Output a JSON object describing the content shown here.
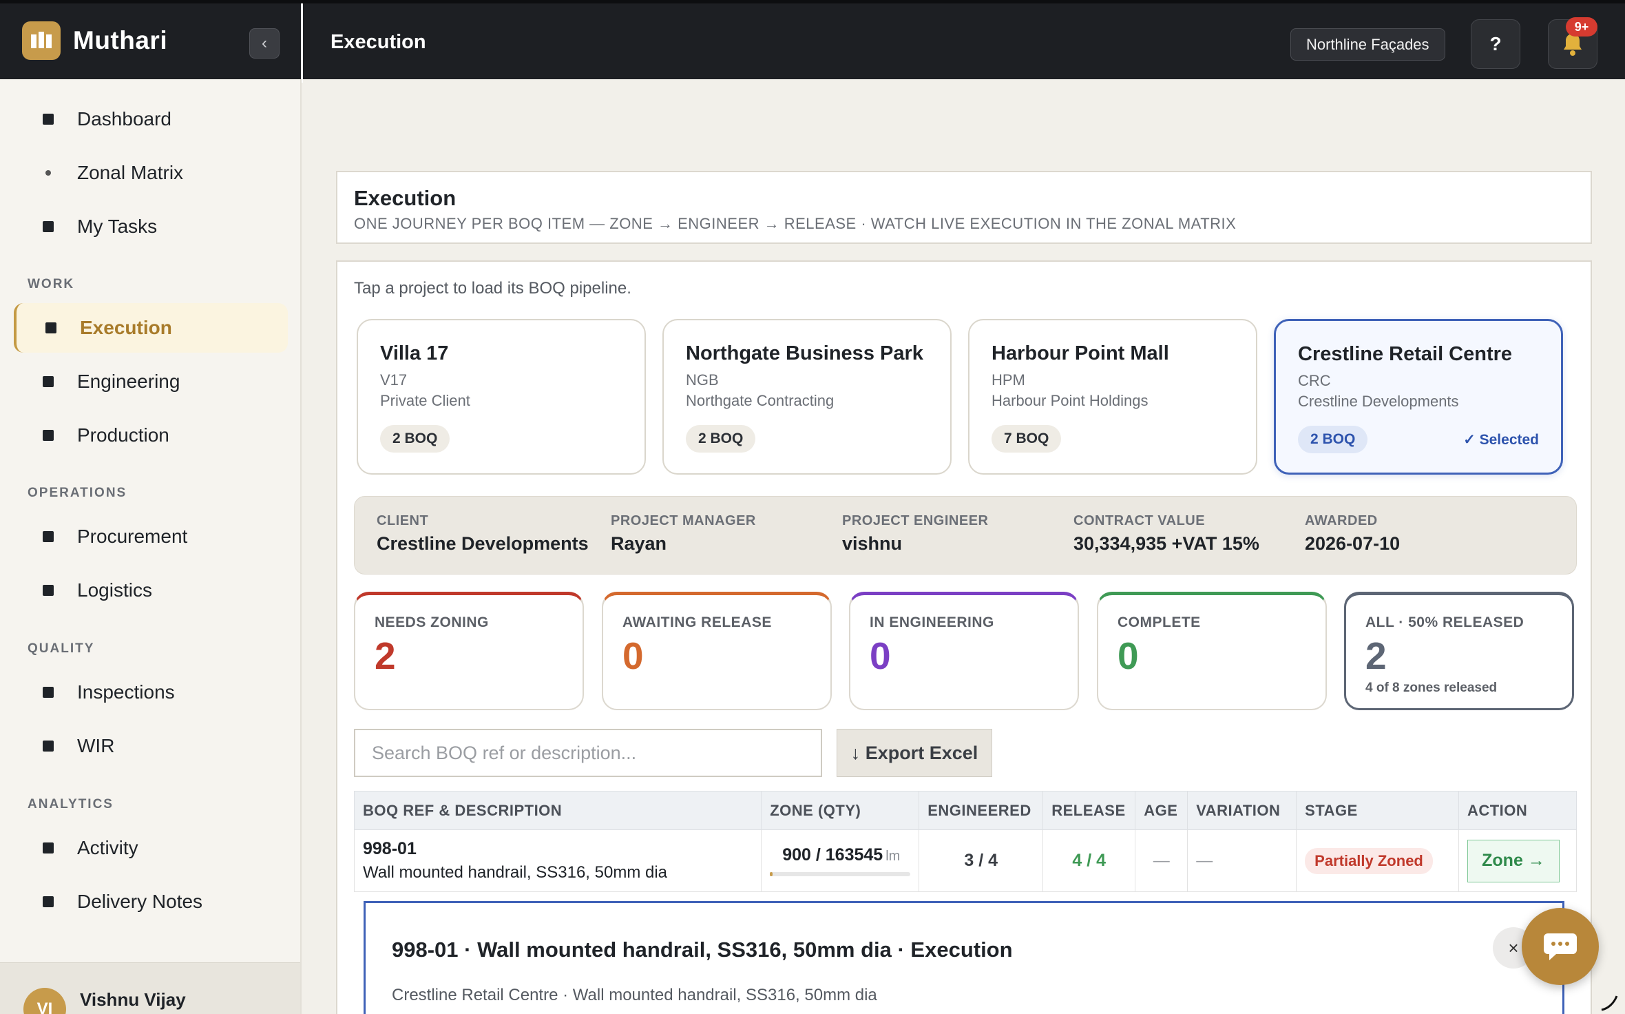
{
  "app": {
    "brand": "Muthari",
    "page_title": "Execution",
    "org": "Northline Façades",
    "help_label": "?",
    "notif_count": "9+"
  },
  "sidebar": {
    "items_top": [
      {
        "label": "Dashboard"
      },
      {
        "label": "Zonal Matrix"
      },
      {
        "label": "My Tasks"
      }
    ],
    "sections": [
      {
        "title": "WORK",
        "items": [
          {
            "label": "Execution"
          },
          {
            "label": "Engineering"
          },
          {
            "label": "Production"
          }
        ]
      },
      {
        "title": "OPERATIONS",
        "items": [
          {
            "label": "Procurement"
          },
          {
            "label": "Logistics"
          }
        ]
      },
      {
        "title": "QUALITY",
        "items": [
          {
            "label": "Inspections"
          },
          {
            "label": "WIR"
          }
        ]
      },
      {
        "title": "ANALYTICS",
        "items": [
          {
            "label": "Activity"
          },
          {
            "label": "Delivery Notes"
          }
        ]
      }
    ],
    "user": {
      "initials": "VI",
      "name": "Vishnu Vijay"
    }
  },
  "header": {
    "title": "Execution",
    "subtitle": "ONE JOURNEY PER BOQ ITEM — ZONE → ENGINEER → RELEASE · WATCH LIVE EXECUTION IN THE ZONAL MATRIX"
  },
  "projects": {
    "hint": "Tap a project to load its BOQ pipeline.",
    "selected_label": "✓ Selected",
    "items": [
      {
        "name": "Villa 17",
        "code": "V17",
        "client": "Private Client",
        "boq": "2 BOQ"
      },
      {
        "name": "Northgate Business Park",
        "code": "NGB",
        "client": "Northgate Contracting",
        "boq": "2 BOQ"
      },
      {
        "name": "Harbour Point Mall",
        "code": "HPM",
        "client": "Harbour Point Holdings",
        "boq": "7 BOQ"
      },
      {
        "name": "Crestline Retail Centre",
        "code": "CRC",
        "client": "Crestline Developments",
        "boq": "2 BOQ"
      }
    ]
  },
  "project_info": [
    {
      "label": "CLIENT",
      "value": "Crestline Developments"
    },
    {
      "label": "PROJECT MANAGER",
      "value": "Rayan"
    },
    {
      "label": "PROJECT ENGINEER",
      "value": "vishnu"
    },
    {
      "label": "CONTRACT VALUE",
      "value": "30,334,935 +VAT 15%"
    },
    {
      "label": "AWARDED",
      "value": "2026-07-10"
    }
  ],
  "kpis": [
    {
      "label": "NEEDS ZONING",
      "value": "2",
      "color": "#c0392b"
    },
    {
      "label": "AWAITING RELEASE",
      "value": "0",
      "color": "#d4692e"
    },
    {
      "label": "IN ENGINEERING",
      "value": "0",
      "color": "#7b3fc4"
    },
    {
      "label": "COMPLETE",
      "value": "0",
      "color": "#3f9a55"
    },
    {
      "label": "ALL · 50% RELEASED",
      "value": "2",
      "sub": "4 of 8 zones released",
      "color": "#5d6675"
    }
  ],
  "search": {
    "placeholder": "Search BOQ ref or description..."
  },
  "export_label": "↓ Export Excel",
  "table": {
    "headers": [
      "BOQ REF & DESCRIPTION",
      "ZONE (QTY)",
      "ENGINEERED",
      "RELEASE",
      "AGE",
      "VARIATION",
      "STAGE",
      "ACTION"
    ],
    "rows": [
      {
        "ref": "998-01",
        "desc": "Wall mounted handrail, SS316, 50mm dia",
        "qty": "900 / 163545",
        "unit": "lm",
        "qty_fraction": 0.0055,
        "engineered": "3 / 4",
        "release": "4 / 4",
        "age": "—",
        "variation": "—",
        "stage": "Partially Zoned",
        "action": "Zone →"
      }
    ]
  },
  "detail": {
    "title": "998-01 · Wall mounted handrail, SS316, 50mm dia · Execution",
    "subtitle": "Crestline Retail Centre · Wall mounted handrail, SS316, 50mm dia",
    "close": "×"
  },
  "colors": {
    "accent": "#c79b4b",
    "selected": "#3f62b8"
  }
}
